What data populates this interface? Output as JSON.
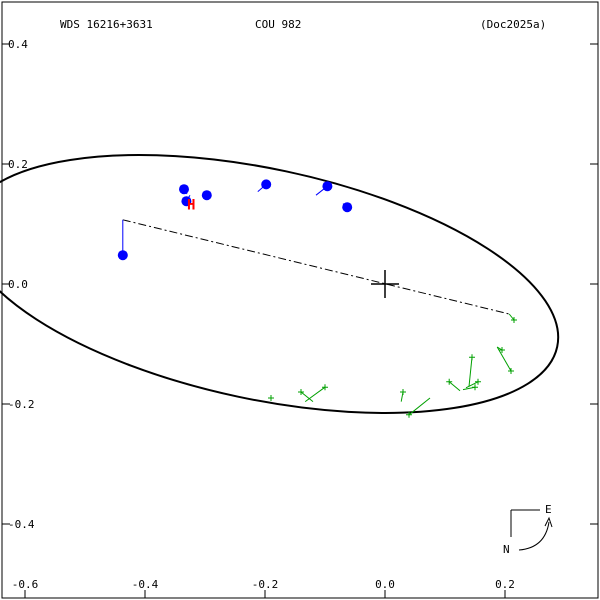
{
  "chart_data": {
    "type": "scatter",
    "header": {
      "left": "WDS 16216+3631",
      "center": "COU 982",
      "right": "(Doc2025a)"
    },
    "xlim": [
      -0.6,
      0.35
    ],
    "ylim": [
      -0.5,
      0.43
    ],
    "x_ticks": [
      {
        "v": -0.6,
        "label": "-0.6"
      },
      {
        "v": -0.4,
        "label": "-0.4"
      },
      {
        "v": -0.2,
        "label": "-0.2"
      },
      {
        "v": 0.0,
        "label": "0.0"
      },
      {
        "v": 0.2,
        "label": "0.2"
      }
    ],
    "y_ticks": [
      {
        "v": 0.4,
        "label": "0.4"
      },
      {
        "v": 0.2,
        "label": "0.2"
      },
      {
        "v": 0.0,
        "label": "0.0"
      },
      {
        "v": -0.2,
        "label": "-0.2"
      },
      {
        "v": -0.4,
        "label": "-0.4"
      }
    ],
    "orbit": {
      "cx": -0.205,
      "cy": 0.0,
      "a": 0.503,
      "b": 0.192,
      "tilt_deg": -12,
      "color": "#000000"
    },
    "line_of_nodes": [
      [
        -0.437,
        0.107
      ],
      [
        0.207,
        -0.05
      ]
    ],
    "primary": [
      0.0,
      0.0
    ],
    "blue_points": {
      "color": "#0000ff",
      "points": [
        {
          "obs": [
            -0.437,
            0.048
          ],
          "calc": [
            -0.437,
            0.107
          ]
        },
        {
          "obs": [
            -0.335,
            0.158
          ],
          "calc": [
            -0.33,
            0.15
          ]
        },
        {
          "obs": [
            -0.331,
            0.138
          ],
          "calc": [
            -0.325,
            0.148
          ]
        },
        {
          "obs": [
            -0.297,
            0.148
          ],
          "calc": [
            -0.3,
            0.151
          ]
        },
        {
          "obs": [
            -0.198,
            0.166
          ],
          "calc": [
            -0.212,
            0.154
          ]
        },
        {
          "obs": [
            -0.096,
            0.163
          ],
          "calc": [
            -0.115,
            0.148
          ]
        },
        {
          "obs": [
            -0.063,
            0.128
          ],
          "calc": [
            -0.07,
            0.134
          ]
        }
      ]
    },
    "green_points": {
      "color": "#00a000",
      "points": [
        {
          "obs": [
            0.215,
            -0.06
          ],
          "calc": [
            0.207,
            -0.05
          ]
        },
        {
          "obs": [
            0.21,
            -0.145
          ],
          "calc": [
            0.187,
            -0.105
          ]
        },
        {
          "obs": [
            0.195,
            -0.11
          ],
          "calc": [
            0.187,
            -0.105
          ]
        },
        {
          "obs": [
            0.155,
            -0.163
          ],
          "calc": [
            0.135,
            -0.173
          ]
        },
        {
          "obs": [
            0.15,
            -0.172
          ],
          "calc": [
            0.13,
            -0.176
          ]
        },
        {
          "obs": [
            0.145,
            -0.122
          ],
          "calc": [
            0.14,
            -0.171
          ]
        },
        {
          "obs": [
            0.107,
            -0.163
          ],
          "calc": [
            0.125,
            -0.178
          ]
        },
        {
          "obs": [
            0.04,
            -0.218
          ],
          "calc": [
            0.075,
            -0.19
          ]
        },
        {
          "obs": [
            0.03,
            -0.18
          ],
          "calc": [
            0.027,
            -0.196
          ]
        },
        {
          "obs": [
            -0.1,
            -0.172
          ],
          "calc": [
            -0.133,
            -0.196
          ]
        },
        {
          "obs": [
            -0.14,
            -0.18
          ],
          "calc": [
            -0.12,
            -0.196
          ]
        },
        {
          "obs": [
            -0.19,
            -0.19
          ],
          "calc": [
            -0.19,
            -0.192
          ]
        }
      ]
    },
    "marker_label": {
      "text": "H",
      "at": [
        -0.323,
        0.124
      ],
      "color": "#ff0000"
    },
    "compass": {
      "east": "E",
      "north": "N"
    }
  }
}
